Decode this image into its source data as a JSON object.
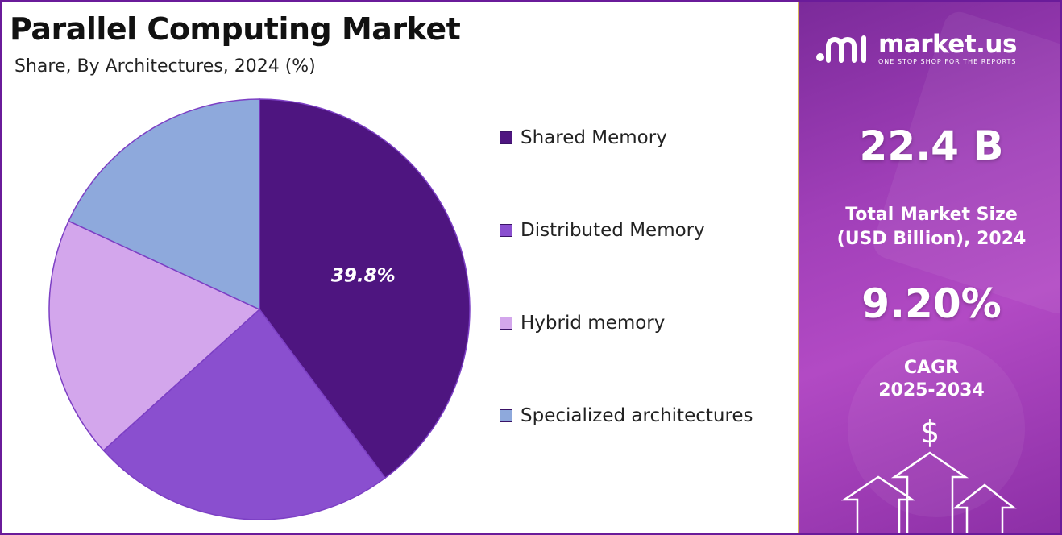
{
  "title": "Parallel Computing Market",
  "subtitle": "Share, By Architectures, 2024 (%)",
  "chart_data": {
    "type": "pie",
    "title": "Parallel Computing Market",
    "subtitle": "Share, By Architectures, 2024 (%)",
    "categories": [
      "Shared Memory",
      "Distributed Memory",
      "Hybrid memory",
      "Specialized architectures"
    ],
    "values": [
      39.8,
      23.5,
      18.6,
      18.1
    ],
    "colors": [
      "#4e1580",
      "#8a4fcf",
      "#d3a6ec",
      "#8ea9dc"
    ],
    "data_labels": [
      "39.8%",
      "",
      "",
      ""
    ],
    "legend_position": "right"
  },
  "legend": [
    {
      "label": "Shared Memory",
      "color": "#4e1580"
    },
    {
      "label": "Distributed Memory",
      "color": "#8a4fcf"
    },
    {
      "label": "Hybrid memory",
      "color": "#d3a6ec"
    },
    {
      "label": "Specialized architectures",
      "color": "#8ea9dc"
    }
  ],
  "sidebar": {
    "brand": "market.us",
    "tagline": "ONE STOP SHOP FOR THE REPORTS",
    "market_size": "22.4 B",
    "market_size_label_1": "Total Market Size",
    "market_size_label_2": "(USD Billion), 2024",
    "cagr": "9.20%",
    "cagr_label": "CAGR",
    "cagr_period": "2025-2034",
    "dollar_icon": "$"
  }
}
